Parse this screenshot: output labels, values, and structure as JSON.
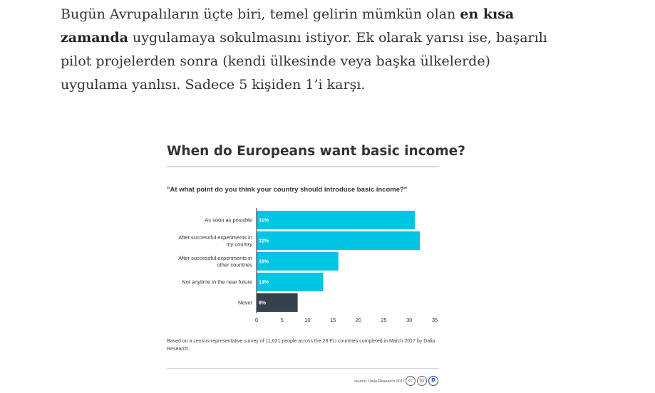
{
  "article": {
    "para_before": "Bugün Avrupalıların üçte biri, temel gelirin mümkün olan ",
    "para_bold": "en kısa zamanda",
    "para_after": " uygulamaya sokulmasını istiyor. Ek olarak yarısı ise, başarılı pilot projelerden sonra (kendi ülkesinde veya başka ülkelerde) uygulama yanlısı. Sadece 5 kişiden 1’i karşı."
  },
  "figure": {
    "title": "When do Europeans want basic income?",
    "question": "\"At what point do you think your country should introduce basic income?\"",
    "note": "Based on a census-representative survey of 11,021 people across the 28 EU countries completed in March 2017 by Dalia Research.",
    "source": "source: Dalia Research 2017",
    "license_icons": [
      "cc",
      "by",
      "D"
    ]
  },
  "chart_data": {
    "type": "bar",
    "orientation": "horizontal",
    "categories": [
      [
        "As soon as possible"
      ],
      [
        "After successful experiments in",
        "my country"
      ],
      [
        "After successful experiments in",
        "other countries"
      ],
      [
        "Not anytime in the near future"
      ],
      [
        "Never"
      ]
    ],
    "values": [
      31,
      32,
      16,
      13,
      8
    ],
    "data_labels": [
      "31%",
      "32%",
      "16%",
      "13%",
      "8%"
    ],
    "colors": [
      "#00c5e4",
      "#00c5e4",
      "#00c5e4",
      "#00c5e4",
      "#36424b"
    ],
    "xticks": [
      0,
      5,
      10,
      15,
      20,
      25,
      30,
      35
    ],
    "xlim": [
      0,
      35
    ],
    "grid": false
  }
}
